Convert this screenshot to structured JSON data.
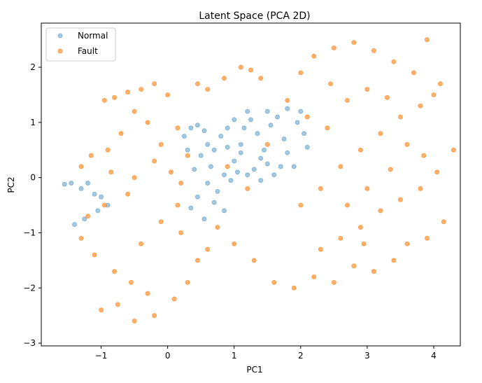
{
  "chart_data": {
    "type": "scatter",
    "title": "Latent Space (PCA 2D)",
    "xlabel": "PC1",
    "ylabel": "PC2",
    "xlim": [
      -1.9,
      4.4
    ],
    "ylim": [
      -3.05,
      2.8
    ],
    "xticks": [
      -1,
      0,
      1,
      2,
      3,
      4
    ],
    "yticks": [
      -3,
      -2,
      -1,
      0,
      1,
      2
    ],
    "grid": false,
    "legend_position": "upper-left",
    "series": [
      {
        "name": "Normal",
        "color": "#1f77b4",
        "alpha": 0.4,
        "points": [
          [
            -1.55,
            -0.12
          ],
          [
            -1.45,
            -0.1
          ],
          [
            -1.3,
            -0.2
          ],
          [
            -1.2,
            -0.1
          ],
          [
            -1.1,
            -0.3
          ],
          [
            -1.0,
            -0.35
          ],
          [
            -0.9,
            -0.5
          ],
          [
            -1.05,
            -0.6
          ],
          [
            -1.25,
            -0.75
          ],
          [
            -1.4,
            -0.85
          ],
          [
            0.35,
            0.9
          ],
          [
            0.45,
            0.95
          ],
          [
            0.55,
            0.85
          ],
          [
            0.6,
            0.6
          ],
          [
            0.5,
            0.4
          ],
          [
            0.65,
            0.2
          ],
          [
            0.7,
            0.5
          ],
          [
            0.8,
            0.75
          ],
          [
            0.9,
            0.55
          ],
          [
            1.0,
            0.3
          ],
          [
            1.1,
            0.6
          ],
          [
            1.15,
            0.9
          ],
          [
            1.25,
            1.05
          ],
          [
            1.35,
            0.8
          ],
          [
            1.45,
            0.5
          ],
          [
            1.5,
            0.25
          ],
          [
            1.55,
            0.95
          ],
          [
            1.65,
            1.1
          ],
          [
            1.75,
            0.7
          ],
          [
            1.8,
            0.45
          ],
          [
            1.9,
            0.2
          ],
          [
            1.95,
            1.0
          ],
          [
            2.05,
            0.8
          ],
          [
            2.1,
            0.55
          ],
          [
            0.6,
            -0.1
          ],
          [
            0.75,
            -0.25
          ],
          [
            0.85,
            0.05
          ],
          [
            0.95,
            -0.05
          ],
          [
            1.05,
            0.1
          ],
          [
            1.2,
            0.05
          ],
          [
            1.3,
            0.15
          ],
          [
            1.4,
            -0.05
          ],
          [
            1.6,
            0.05
          ],
          [
            1.7,
            0.2
          ],
          [
            0.4,
            0.15
          ],
          [
            0.3,
            0.5
          ],
          [
            0.25,
            0.75
          ],
          [
            0.7,
            -0.45
          ],
          [
            0.85,
            -0.6
          ],
          [
            0.55,
            -0.75
          ],
          [
            1.0,
            1.05
          ],
          [
            1.2,
            1.2
          ],
          [
            1.5,
            1.2
          ],
          [
            1.8,
            1.25
          ],
          [
            2.0,
            1.2
          ],
          [
            0.45,
            -0.35
          ],
          [
            0.35,
            -0.55
          ],
          [
            0.9,
            0.9
          ],
          [
            1.4,
            0.35
          ],
          [
            1.1,
            0.45
          ]
        ]
      },
      {
        "name": "Fault",
        "color": "#ff7f0e",
        "alpha": 0.6,
        "points": [
          [
            -0.95,
            1.4
          ],
          [
            -0.8,
            1.45
          ],
          [
            -0.6,
            1.55
          ],
          [
            -0.4,
            1.6
          ],
          [
            -0.2,
            1.7
          ],
          [
            0.0,
            1.5
          ],
          [
            -0.5,
            1.2
          ],
          [
            -0.3,
            1.0
          ],
          [
            -0.7,
            0.8
          ],
          [
            -0.1,
            0.6
          ],
          [
            -0.9,
            0.5
          ],
          [
            -1.15,
            0.4
          ],
          [
            -1.3,
            0.2
          ],
          [
            -0.85,
            0.1
          ],
          [
            -0.5,
            0.0
          ],
          [
            -0.2,
            0.3
          ],
          [
            0.05,
            0.1
          ],
          [
            0.2,
            -0.1
          ],
          [
            -0.6,
            -0.3
          ],
          [
            -0.95,
            -0.5
          ],
          [
            -1.2,
            -0.7
          ],
          [
            -1.3,
            -1.1
          ],
          [
            -1.1,
            -1.4
          ],
          [
            -0.8,
            -1.7
          ],
          [
            -0.55,
            -1.9
          ],
          [
            -0.3,
            -2.1
          ],
          [
            -0.75,
            -2.3
          ],
          [
            -1.0,
            -2.4
          ],
          [
            -0.5,
            -2.6
          ],
          [
            -0.2,
            -2.5
          ],
          [
            0.1,
            -2.2
          ],
          [
            0.3,
            -1.9
          ],
          [
            0.45,
            -1.5
          ],
          [
            0.6,
            -1.3
          ],
          [
            0.2,
            -1.0
          ],
          [
            -0.1,
            -0.8
          ],
          [
            -0.4,
            -1.2
          ],
          [
            0.15,
            -0.5
          ],
          [
            0.3,
            0.4
          ],
          [
            0.15,
            0.9
          ],
          [
            0.45,
            1.7
          ],
          [
            0.6,
            1.6
          ],
          [
            0.85,
            1.8
          ],
          [
            1.1,
            2.0
          ],
          [
            1.25,
            1.95
          ],
          [
            1.4,
            1.8
          ],
          [
            0.9,
            0.2
          ],
          [
            1.2,
            -0.2
          ],
          [
            1.5,
            0.6
          ],
          [
            0.75,
            -0.9
          ],
          [
            1.0,
            -1.2
          ],
          [
            1.3,
            -1.5
          ],
          [
            1.6,
            -1.9
          ],
          [
            1.9,
            -2.0
          ],
          [
            2.2,
            -1.8
          ],
          [
            2.5,
            -1.9
          ],
          [
            2.8,
            -1.6
          ],
          [
            3.1,
            -1.7
          ],
          [
            3.4,
            -1.5
          ],
          [
            3.6,
            -1.2
          ],
          [
            2.3,
            -1.3
          ],
          [
            2.6,
            -1.1
          ],
          [
            2.9,
            -0.9
          ],
          [
            3.2,
            -0.6
          ],
          [
            3.5,
            -0.4
          ],
          [
            3.8,
            -0.2
          ],
          [
            4.05,
            0.1
          ],
          [
            4.3,
            0.5
          ],
          [
            4.15,
            -0.8
          ],
          [
            3.9,
            -1.1
          ],
          [
            2.0,
            -0.5
          ],
          [
            2.3,
            -0.2
          ],
          [
            2.6,
            0.2
          ],
          [
            2.9,
            0.5
          ],
          [
            3.2,
            0.8
          ],
          [
            3.5,
            1.1
          ],
          [
            3.8,
            1.3
          ],
          [
            4.0,
            1.5
          ],
          [
            4.1,
            1.7
          ],
          [
            3.7,
            1.9
          ],
          [
            3.4,
            2.1
          ],
          [
            3.1,
            2.3
          ],
          [
            2.8,
            2.45
          ],
          [
            2.5,
            2.35
          ],
          [
            2.2,
            2.2
          ],
          [
            2.0,
            1.9
          ],
          [
            1.8,
            1.4
          ],
          [
            2.1,
            1.1
          ],
          [
            2.4,
            0.9
          ],
          [
            2.7,
            1.4
          ],
          [
            3.0,
            1.6
          ],
          [
            3.3,
            1.45
          ],
          [
            3.6,
            0.6
          ],
          [
            3.0,
            -0.2
          ],
          [
            2.7,
            -0.5
          ],
          [
            3.9,
            2.5
          ],
          [
            3.85,
            0.4
          ],
          [
            2.95,
            -1.2
          ],
          [
            3.35,
            0.15
          ],
          [
            2.45,
            1.7
          ]
        ]
      }
    ]
  }
}
